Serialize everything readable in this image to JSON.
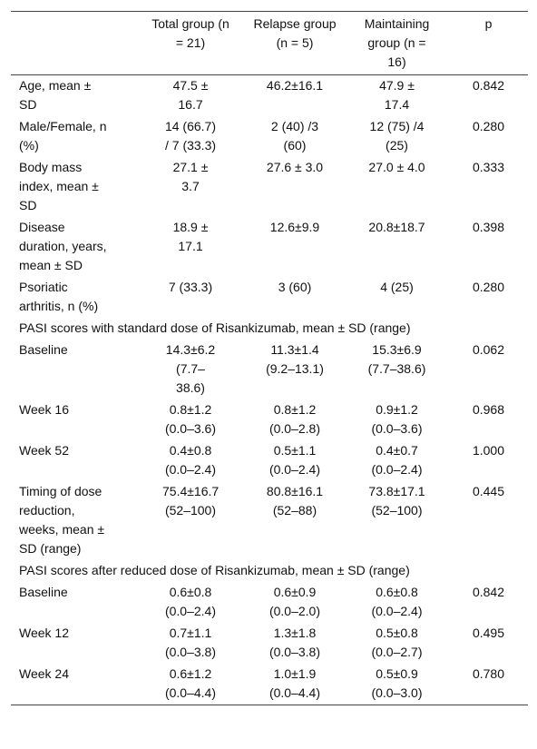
{
  "table": {
    "header": [
      "",
      "Total group (n = 21)",
      "Relapse group (n = 5)",
      "Maintaining group (n = 16)",
      "p"
    ],
    "rows": [
      [
        "Age, mean ± SD",
        "47.5 ± 16.7",
        "46.2±16.1",
        "47.9 ± 17.4",
        "0.842"
      ],
      [
        "Male/Female, n (%)",
        "14 (66.7) / 7 (33.3)",
        "2 (40) /3 (60)",
        "12 (75) /4 (25)",
        "0.280"
      ],
      [
        "Body mass index, mean ± SD",
        "27.1 ± 3.7",
        "27.6 ± 3.0",
        "27.0 ± 4.0",
        "0.333"
      ],
      [
        "Disease duration, years, mean ± SD",
        "18.9 ± 17.1",
        "12.6±9.9",
        "20.8±18.7",
        "0.398"
      ],
      [
        "Psoriatic arthritis, n (%)",
        "7 (33.3)",
        "3 (60)",
        "4 (25)",
        "0.280"
      ],
      [
        "PASI scores with standard dose of Risankizumab, mean ± SD (range)"
      ],
      [
        "Baseline",
        "14.3±6.2 (7.7–38.6)",
        "11.3±1.4 (9.2–13.1)",
        "15.3±6.9 (7.7–38.6)",
        "0.062"
      ],
      [
        "Week 16",
        "0.8±1.2 (0.0–3.6)",
        "0.8±1.2 (0.0–2.8)",
        "0.9±1.2 (0.0–3.6)",
        "0.968"
      ],
      [
        "Week 52",
        "0.4±0.8 (0.0–2.4)",
        "0.5±1.1 (0.0–2.4)",
        "0.4±0.7 (0.0–2.4)",
        "1.000"
      ],
      [
        "Timing of dose reduction, weeks, mean ± SD (range)",
        "75.4±16.7 (52–100)",
        "80.8±16.1 (52–88)",
        "73.8±17.1 (52–100)",
        "0.445"
      ],
      [
        "PASI scores after reduced dose of Risankizumab, mean ± SD (range)"
      ],
      [
        "Baseline",
        "0.6±0.8 (0.0–2.4)",
        "0.6±0.9 (0.0–2.0)",
        "0.6±0.8 (0.0–2.4)",
        "0.842"
      ],
      [
        "Week 12",
        "0.7±1.1 (0.0–3.8)",
        "1.3±1.8 (0.0–3.8)",
        "0.5±0.8 (0.0–2.7)",
        "0.495"
      ],
      [
        "Week 24",
        "0.6±1.2 (0.0–4.4)",
        "1.0±1.9 (0.0–4.4)",
        "0.5±0.9 (0.0–3.0)",
        "0.780"
      ]
    ]
  }
}
